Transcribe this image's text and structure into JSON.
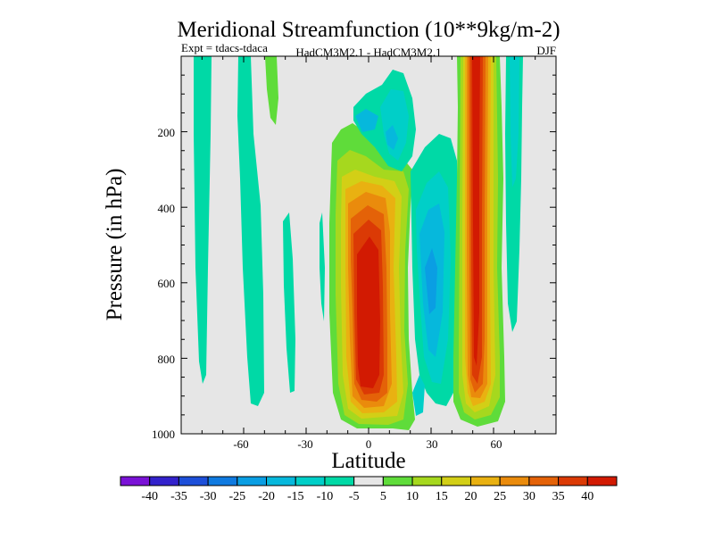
{
  "chart_data": {
    "type": "filled-contour",
    "title": "Meridional Streamfunction (10**9kg/m-2)",
    "subtitle_left": "Expt = tdacs-tdaca",
    "subtitle_center": "HadCM3M2.1 - HadCM3M2.1",
    "subtitle_right": "DJF",
    "xlabel": "Latitude",
    "ylabel": "Pressure (in hPa)",
    "xlim": [
      -90,
      90
    ],
    "ylim": [
      1000,
      0
    ],
    "x_ticks": [
      -60,
      -30,
      0,
      30,
      60
    ],
    "x_tick_labels": [
      "-60",
      "-30",
      "0",
      "30",
      "60"
    ],
    "y_ticks": [
      200,
      400,
      600,
      800,
      1000
    ],
    "y_tick_labels": [
      "200",
      "400",
      "600",
      "800",
      "1000"
    ],
    "background_color": "#e6e6e6",
    "colorbar": {
      "labels": [
        "-40",
        "-35",
        "-30",
        "-25",
        "-20",
        "-15",
        "-10",
        "-5",
        "5",
        "10",
        "15",
        "20",
        "25",
        "30",
        "35",
        "40"
      ],
      "boundaries": [
        -40,
        -35,
        -30,
        -25,
        -20,
        -15,
        -10,
        -5,
        5,
        10,
        15,
        20,
        25,
        30,
        35,
        40
      ],
      "colors": [
        "#7a12d6",
        "#3322cc",
        "#1d4fd9",
        "#0f7ae0",
        "#0a9ee3",
        "#06b8dc",
        "#00cfc8",
        "#00d9a6",
        "#e6e6e6",
        "#5fdc3a",
        "#a6d81e",
        "#d3cf16",
        "#e9b111",
        "#ea8b0c",
        "#e46208",
        "#db3a05",
        "#d21a02"
      ]
    },
    "features": [
      {
        "name": "tropical-positive-cell",
        "lat_range": [
          -15,
          15
        ],
        "p_range": [
          180,
          980
        ],
        "peak": 40,
        "core_lat": 3,
        "core_p_range": [
          350,
          850
        ]
      },
      {
        "name": "nh-midlatitude-positive-cell",
        "lat_range": [
          38,
          65
        ],
        "p_range": [
          0,
          980
        ],
        "peak": 40,
        "core_lat": 52
      },
      {
        "name": "tropical-negative-cell",
        "lat_range": [
          10,
          42
        ],
        "p_range": [
          0,
          960
        ],
        "peak": -20
      },
      {
        "name": "sh-weak-negative-cells",
        "lat_range": [
          -82,
          -35
        ],
        "p_range": [
          0,
          950
        ],
        "peak": -10
      },
      {
        "name": "sh-weak-positive-band",
        "lat_range": [
          -48,
          -43
        ],
        "p_range": [
          0,
          230
        ],
        "peak": 10
      }
    ]
  }
}
